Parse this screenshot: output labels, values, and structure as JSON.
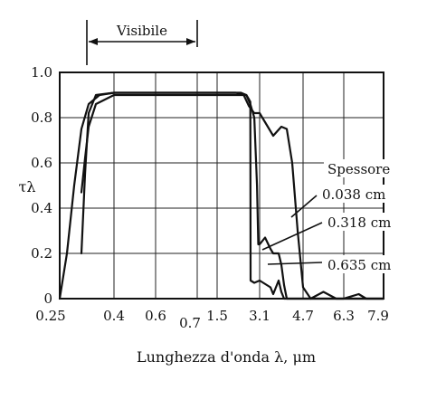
{
  "chart_data": {
    "type": "line",
    "title": "",
    "xlabel": "Lunghezza d'onda λ, μm",
    "ylabel": "τλ",
    "x_tick_labels": [
      "0.25",
      "0.4",
      "0.6",
      "0.7",
      "1.5",
      "3.1",
      "4.7",
      "6.3",
      "7.9"
    ],
    "y_tick_labels": [
      "0",
      "0.2",
      "0.4",
      "0.6",
      "0.8",
      "1.0"
    ],
    "ylim": [
      0,
      1.0
    ],
    "grid": true,
    "visible_band": {
      "label": "Visibile",
      "from": 0.3,
      "to": 0.7
    },
    "legend_title": "Spessore",
    "series": [
      {
        "name": "0.038 cm",
        "points": [
          [
            0.25,
            0
          ],
          [
            0.27,
            0.2
          ],
          [
            0.29,
            0.5
          ],
          [
            0.31,
            0.75
          ],
          [
            0.33,
            0.86
          ],
          [
            0.36,
            0.9
          ],
          [
            0.4,
            0.91
          ],
          [
            0.6,
            0.91
          ],
          [
            0.7,
            0.91
          ],
          [
            1.5,
            0.91
          ],
          [
            2.2,
            0.91
          ],
          [
            2.5,
            0.9
          ],
          [
            2.7,
            0.85
          ],
          [
            2.9,
            0.82
          ],
          [
            3.1,
            0.82
          ],
          [
            3.3,
            0.78
          ],
          [
            3.6,
            0.72
          ],
          [
            3.9,
            0.76
          ],
          [
            4.1,
            0.75
          ],
          [
            4.3,
            0.6
          ],
          [
            4.5,
            0.3
          ],
          [
            4.7,
            0.05
          ],
          [
            5.0,
            0.0
          ],
          [
            5.5,
            0.03
          ],
          [
            6.0,
            0.0
          ],
          [
            6.3,
            0.0
          ],
          [
            6.9,
            0.02
          ],
          [
            7.2,
            0.0
          ],
          [
            7.9,
            0.0
          ]
        ]
      },
      {
        "name": "0.318 cm",
        "points": [
          [
            0.31,
            0.2
          ],
          [
            0.32,
            0.55
          ],
          [
            0.33,
            0.82
          ],
          [
            0.35,
            0.9
          ],
          [
            0.4,
            0.91
          ],
          [
            0.7,
            0.91
          ],
          [
            1.5,
            0.91
          ],
          [
            2.4,
            0.91
          ],
          [
            2.6,
            0.9
          ],
          [
            2.75,
            0.86
          ],
          [
            2.9,
            0.8
          ],
          [
            3.0,
            0.5
          ],
          [
            3.05,
            0.24
          ],
          [
            3.1,
            0.24
          ],
          [
            3.3,
            0.27
          ],
          [
            3.5,
            0.22
          ],
          [
            3.6,
            0.2
          ],
          [
            3.8,
            0.2
          ],
          [
            3.9,
            0.15
          ],
          [
            4.0,
            0.06
          ],
          [
            4.1,
            0.0
          ],
          [
            7.9,
            0.0
          ]
        ]
      },
      {
        "name": "0.635 cm",
        "points": [
          [
            0.31,
            0.47
          ],
          [
            0.32,
            0.62
          ],
          [
            0.33,
            0.76
          ],
          [
            0.35,
            0.86
          ],
          [
            0.4,
            0.9
          ],
          [
            0.7,
            0.9
          ],
          [
            1.5,
            0.9
          ],
          [
            2.6,
            0.9
          ],
          [
            2.7,
            0.88
          ],
          [
            2.75,
            0.87
          ],
          [
            2.76,
            0.08
          ],
          [
            2.9,
            0.07
          ],
          [
            3.1,
            0.08
          ],
          [
            3.5,
            0.05
          ],
          [
            3.6,
            0.02
          ],
          [
            3.8,
            0.08
          ],
          [
            3.9,
            0.03
          ],
          [
            4.0,
            0.0
          ],
          [
            7.9,
            0.0
          ]
        ]
      }
    ]
  }
}
